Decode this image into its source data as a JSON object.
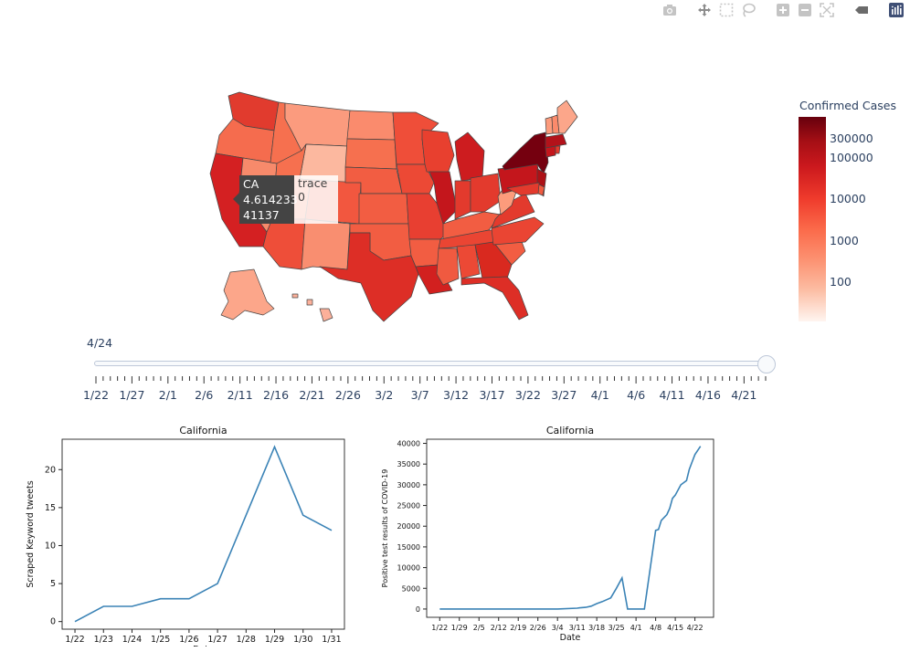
{
  "toolbar": {
    "icons": [
      "camera-icon",
      "pan-icon",
      "box-select-icon",
      "lasso-icon",
      "zoom-in-icon",
      "zoom-out-icon",
      "autoscale-icon",
      "hover-closest-icon",
      "plotly-logo-icon"
    ]
  },
  "map": {
    "colorbar_title": "Confirmed Cases",
    "colorbar_ticks": [
      "300000",
      "100000",
      "10000",
      "1000",
      "100"
    ],
    "hover": {
      "state": "CA",
      "value_log": "4.614233",
      "value": "41137",
      "trace": "trace 0"
    }
  },
  "slider": {
    "current_label": "4/24",
    "step_labels": [
      "1/22",
      "1/27",
      "2/1",
      "2/6",
      "2/11",
      "2/16",
      "2/21",
      "2/26",
      "3/2",
      "3/7",
      "3/12",
      "3/17",
      "3/22",
      "3/27",
      "4/1",
      "4/6",
      "4/11",
      "4/16",
      "4/21"
    ]
  },
  "chart_data": [
    {
      "type": "line",
      "title": "California",
      "xlabel": "Date",
      "ylabel": "Scraped Keyword tweets",
      "categories": [
        "1/22",
        "1/23",
        "1/24",
        "1/25",
        "1/26",
        "1/27",
        "1/28",
        "1/29",
        "1/30",
        "1/31"
      ],
      "values": [
        0,
        2,
        2,
        3,
        3,
        5,
        14,
        23,
        14,
        12
      ],
      "ylim": [
        -1,
        24
      ],
      "yticks": [
        0,
        5,
        10,
        15,
        20
      ],
      "color": "#3b83b6"
    },
    {
      "type": "line",
      "title": "California",
      "xlabel": "Date",
      "ylabel": "Positive test results of COVID-19",
      "xticks": [
        "1/22",
        "1/29",
        "2/5",
        "2/12",
        "2/19",
        "2/26",
        "3/4",
        "3/11",
        "3/18",
        "3/25",
        "4/1",
        "4/8",
        "4/15",
        "4/22"
      ],
      "x": [
        0,
        14,
        28,
        42,
        49,
        50,
        52,
        54,
        56,
        58,
        61,
        63,
        65,
        67,
        69,
        70,
        73,
        77,
        78,
        79,
        81,
        82,
        83,
        84,
        86,
        88,
        89,
        90,
        91,
        93
      ],
      "y": [
        0,
        0,
        0,
        0,
        200,
        300,
        400,
        700,
        1300,
        1800,
        2700,
        5000,
        7500,
        0,
        0,
        0,
        0,
        19000,
        19200,
        21400,
        22800,
        24300,
        26700,
        27500,
        30000,
        31000,
        33700,
        35500,
        37300,
        39300
      ],
      "ylim": [
        -2000,
        41000
      ],
      "yticks": [
        0,
        5000,
        10000,
        15000,
        20000,
        25000,
        30000,
        35000,
        40000
      ],
      "color": "#3b83b6"
    }
  ]
}
